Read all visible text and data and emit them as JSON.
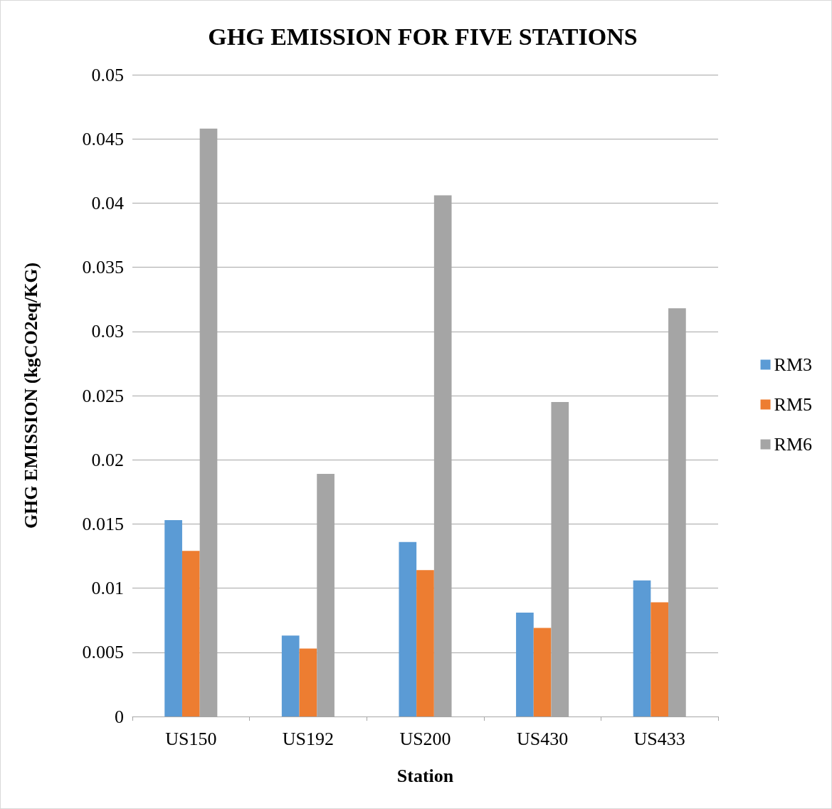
{
  "chart_data": {
    "type": "bar",
    "title": "GHG EMISSION FOR FIVE STATIONS",
    "xlabel": "Station",
    "ylabel": "GHG EMISSION (kgCO2eq/KG)",
    "categories": [
      "US150",
      "US192",
      "US200",
      "US430",
      "US433"
    ],
    "series": [
      {
        "name": "RM3",
        "color": "#5b9bd5",
        "values": [
          0.0153,
          0.0063,
          0.0136,
          0.0081,
          0.0106
        ]
      },
      {
        "name": "RM5",
        "color": "#ed7d31",
        "values": [
          0.0129,
          0.0053,
          0.0114,
          0.0069,
          0.0089
        ]
      },
      {
        "name": "RM6",
        "color": "#a5a5a5",
        "values": [
          0.0458,
          0.0189,
          0.0406,
          0.0245,
          0.0318
        ]
      }
    ],
    "ylim": [
      0,
      0.05
    ],
    "yticks": [
      0,
      0.005,
      0.01,
      0.015,
      0.02,
      0.025,
      0.03,
      0.035,
      0.04,
      0.045,
      0.05
    ],
    "grid": "y",
    "legend": "right"
  }
}
